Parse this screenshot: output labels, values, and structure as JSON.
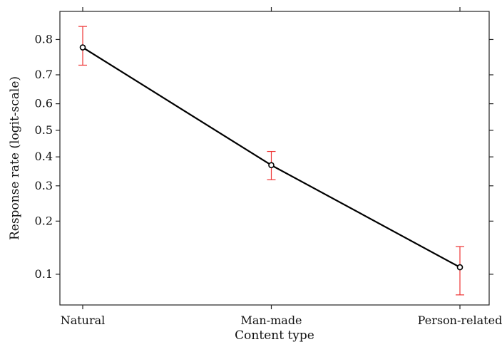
{
  "chart_data": {
    "type": "line",
    "xlabel": "Content type",
    "ylabel": "Response rate (logit-scale)",
    "y_scale": "logit",
    "categories": [
      "Natural",
      "Man-made",
      "Person-related"
    ],
    "series": [
      {
        "values": [
          0.78,
          0.37,
          0.11
        ],
        "lower": [
          0.73,
          0.32,
          0.075
        ],
        "upper": [
          0.83,
          0.42,
          0.145
        ]
      }
    ],
    "y_ticks": [
      0.1,
      0.2,
      0.3,
      0.4,
      0.5,
      0.6,
      0.7,
      0.8
    ],
    "ylim": [
      0.065,
      0.86
    ],
    "grid": false,
    "colors": {
      "line": "#000000",
      "error_bars": "#ee3333",
      "axes": "#222222"
    }
  }
}
